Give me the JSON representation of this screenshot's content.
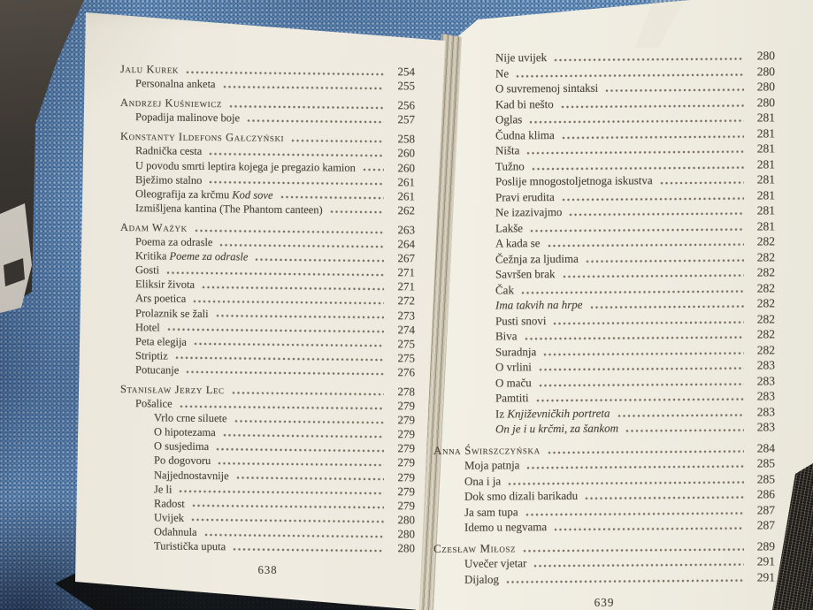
{
  "colors": {
    "fabric_blue": "#4d7aab",
    "page_cream": "#f0ece0",
    "ink": "#4a443b",
    "shadow_dark": "#191714"
  },
  "book": {
    "left_page": {
      "page_number": "638",
      "entries": [
        {
          "sc": true,
          "t": "Jalu Kurek",
          "page": "254",
          "level": 0
        },
        {
          "t": "Personalna anketa",
          "page": "255",
          "level": 1
        },
        {
          "sc": true,
          "gap": true,
          "t": "Andrzej Kuśniewicz",
          "page": "256",
          "level": 0
        },
        {
          "t": "Popadija malinove boje",
          "page": "257",
          "level": 1
        },
        {
          "sc": true,
          "gap": true,
          "t": "Konstanty Ildefons Gałczyński",
          "page": "258",
          "level": 0
        },
        {
          "t": "Radnička cesta",
          "page": "260",
          "level": 1
        },
        {
          "t": "U povodu smrti leptira kojega je pregazio kamion",
          "page": "260",
          "level": 1
        },
        {
          "t": "Bježimo stalno",
          "page": "261",
          "level": 1
        },
        {
          "t": "Oleografija za krčmu ",
          "em": "Kod sove",
          "page": "261",
          "level": 1
        },
        {
          "t": "Izmišljena kantina (The Phantom canteen)",
          "page": "262",
          "level": 1
        },
        {
          "sc": true,
          "gap": true,
          "t": "Adam Ważyk",
          "page": "263",
          "level": 0
        },
        {
          "t": "Poema za odrasle",
          "page": "264",
          "level": 1
        },
        {
          "t": "Kritika ",
          "em": "Poeme za odrasle",
          "page": "267",
          "level": 1
        },
        {
          "t": "Gosti",
          "page": "271",
          "level": 1
        },
        {
          "t": "Eliksir života",
          "page": "271",
          "level": 1
        },
        {
          "t": "Ars poetica",
          "page": "272",
          "level": 1
        },
        {
          "t": "Prolaznik se žali",
          "page": "273",
          "level": 1
        },
        {
          "t": "Hotel",
          "page": "274",
          "level": 1
        },
        {
          "t": "Peta elegija",
          "page": "275",
          "level": 1
        },
        {
          "t": "Striptiz",
          "page": "275",
          "level": 1
        },
        {
          "t": "Potucanje",
          "page": "276",
          "level": 1
        },
        {
          "sc": true,
          "gap": true,
          "t": "Stanisław Jerzy Lec",
          "page": "278",
          "level": 0
        },
        {
          "t": "Pošalice",
          "page": "279",
          "level": 1
        },
        {
          "t": "Vrlo crne siluete",
          "page": "279",
          "level": 2
        },
        {
          "t": "O hipotezama",
          "page": "279",
          "level": 2
        },
        {
          "t": "O susjedima",
          "page": "279",
          "level": 2
        },
        {
          "t": "Po dogovoru",
          "page": "279",
          "level": 2
        },
        {
          "t": "Najjednostavnije",
          "page": "279",
          "level": 2
        },
        {
          "t": "Je li",
          "page": "279",
          "level": 2
        },
        {
          "t": "Radost",
          "page": "279",
          "level": 2
        },
        {
          "t": "Uvijek",
          "page": "280",
          "level": 2
        },
        {
          "t": "Odahnula",
          "page": "280",
          "level": 2
        },
        {
          "t": "Turistička uputa",
          "page": "280",
          "level": 2
        }
      ]
    },
    "right_page": {
      "page_number": "639",
      "entries": [
        {
          "t": "Nije uvijek",
          "page": "280",
          "level": 2
        },
        {
          "t": "Ne",
          "page": "280",
          "level": 2
        },
        {
          "t": "O suvremenoj sintaksi",
          "page": "280",
          "level": 2
        },
        {
          "t": "Kad bi nešto",
          "page": "280",
          "level": 2
        },
        {
          "t": "Oglas",
          "page": "281",
          "level": 2
        },
        {
          "t": "Čudna klima",
          "page": "281",
          "level": 2
        },
        {
          "t": "Ništa",
          "page": "281",
          "level": 2
        },
        {
          "t": "Tužno",
          "page": "281",
          "level": 2
        },
        {
          "t": "Poslije mnogostoljetnoga iskustva",
          "page": "281",
          "level": 2
        },
        {
          "t": "Pravi erudita",
          "page": "281",
          "level": 2
        },
        {
          "t": "Ne izazivajmo",
          "page": "281",
          "level": 2
        },
        {
          "t": "Lakše",
          "page": "281",
          "level": 2
        },
        {
          "t": "A kada se",
          "page": "282",
          "level": 2
        },
        {
          "t": "Čežnja za ljudima",
          "page": "282",
          "level": 2
        },
        {
          "t": "Savršen brak",
          "page": "282",
          "level": 2
        },
        {
          "t": "Čak",
          "page": "282",
          "level": 2
        },
        {
          "em": "Ima takvih na hrpe",
          "page": "282",
          "level": 2
        },
        {
          "t": "Pusti snovi",
          "page": "282",
          "level": 2
        },
        {
          "t": "Biva",
          "page": "282",
          "level": 2
        },
        {
          "t": "Suradnja",
          "page": "282",
          "level": 2
        },
        {
          "t": "O vrlini",
          "page": "283",
          "level": 2
        },
        {
          "t": "O maču",
          "page": "283",
          "level": 2
        },
        {
          "t": "Pamtiti",
          "page": "283",
          "level": 2
        },
        {
          "t": "Iz ",
          "em": "Književničkih portreta",
          "page": "283",
          "level": 2
        },
        {
          "em": "On je i u krčmi, za šankom",
          "page": "283",
          "level": 2
        },
        {
          "sc": true,
          "gap": true,
          "t": "Anna Świrszczyńska",
          "page": "284",
          "level": 0
        },
        {
          "t": "Moja patnja",
          "page": "285",
          "level": 1
        },
        {
          "t": "Ona i ja",
          "page": "285",
          "level": 1
        },
        {
          "t": "Dok smo dizali barikadu",
          "page": "286",
          "level": 1
        },
        {
          "t": "Ja sam tupa",
          "page": "287",
          "level": 1
        },
        {
          "t": "Idemo u negvama",
          "page": "287",
          "level": 1
        },
        {
          "sc": true,
          "gap": true,
          "t": "Czesław Miłosz",
          "page": "289",
          "level": 0
        },
        {
          "t": "Uvečer vjetar",
          "page": "291",
          "level": 1
        },
        {
          "t": "Dijalog",
          "page": "291",
          "level": 1
        }
      ]
    }
  }
}
